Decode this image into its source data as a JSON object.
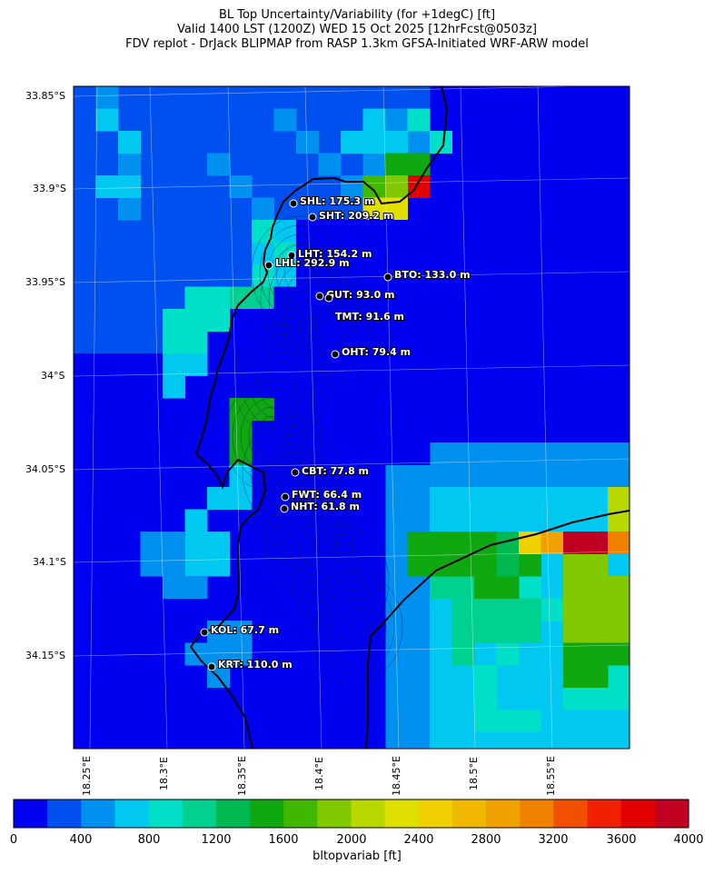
{
  "title_lines": [
    "BL Top Uncertainty/Variability (for +1degC) [ft]",
    "Valid 1400 LST (1200Z) WED 15 Oct 2025 [12hrFcst@0503z]",
    "FDV replot - DrJack BLIPMAP from RASP 1.3km GFSA-Initiated WRF-ARW model"
  ],
  "lat_ticks": [
    "33.85°S",
    "33.9°S",
    "33.95°S",
    "34°S",
    "34.05°S",
    "34.1°S",
    "34.15°S"
  ],
  "lon_ticks": [
    "18.25°E",
    "18.3°E",
    "18.35°E",
    "18.4°E",
    "18.45°E",
    "18.5°E",
    "18.55°E"
  ],
  "stations": [
    {
      "code": "SHL",
      "label": "SHL: 175.3 m"
    },
    {
      "code": "SHT",
      "label": "SHT: 209.2 m"
    },
    {
      "code": "LHT",
      "label": "LHT: 154.2 m"
    },
    {
      "code": "LHL",
      "label": "LHL: 292.9 m"
    },
    {
      "code": "BTO",
      "label": "BTO: 133.0 m"
    },
    {
      "code": "GUT",
      "label": "GUT: 93.0 m"
    },
    {
      "code": "TMT",
      "label": "TMT: 91.6 m"
    },
    {
      "code": "OHT",
      "label": "OHT: 79.4 m"
    },
    {
      "code": "CBT",
      "label": "CBT: 77.8 m"
    },
    {
      "code": "FWT",
      "label": "FWT: 66.4 m"
    },
    {
      "code": "NHT",
      "label": "NHT: 61.8 m"
    },
    {
      "code": "KOL",
      "label": "KOL: 67.7 m"
    },
    {
      "code": "KRT",
      "label": "KRT: 110.0 m"
    }
  ],
  "colorbar": {
    "ticks": [
      "0",
      "400",
      "800",
      "1200",
      "1600",
      "2000",
      "2400",
      "2800",
      "3200",
      "3600",
      "4000"
    ],
    "label": "bltopvariab [ft]",
    "colors": [
      "#0000f0",
      "#0050f0",
      "#0090f0",
      "#00c8f0",
      "#00e0c8",
      "#00d090",
      "#00b850",
      "#10a810",
      "#40b800",
      "#80c800",
      "#b8d800",
      "#e0e000",
      "#f0d000",
      "#f0b800",
      "#f0a000",
      "#f08000",
      "#f05000",
      "#f02000",
      "#e00000",
      "#c00020"
    ]
  }
}
